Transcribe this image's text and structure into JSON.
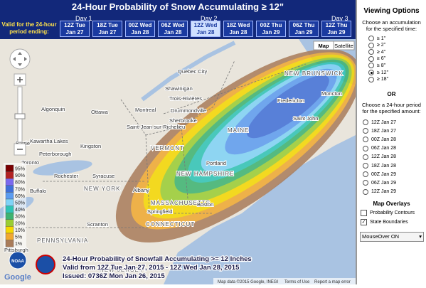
{
  "header": {
    "title": "24-Hour Probability of Snow Accumulating ≥ 12\"",
    "days": [
      "Day 1",
      "Day 2",
      "Day 3"
    ],
    "valid_label": "Valid for the 24-hour period ending:",
    "periods": [
      {
        "time": "12Z Tue",
        "date": "Jan 27",
        "selected": false
      },
      {
        "time": "18Z Tue",
        "date": "Jan 27",
        "selected": false
      },
      {
        "time": "00Z Wed",
        "date": "Jan 28",
        "selected": false
      },
      {
        "time": "06Z Wed",
        "date": "Jan 28",
        "selected": false
      },
      {
        "time": "12Z Wed",
        "date": "Jan 28",
        "selected": true
      },
      {
        "time": "18Z Wed",
        "date": "Jan 28",
        "selected": false
      },
      {
        "time": "00Z Thu",
        "date": "Jan 29",
        "selected": false
      },
      {
        "time": "06Z Thu",
        "date": "Jan 29",
        "selected": false
      },
      {
        "time": "12Z Thu",
        "date": "Jan 29",
        "selected": false
      }
    ]
  },
  "map": {
    "buttons": [
      "Map",
      "Satellite"
    ],
    "places": [
      "Quebec City",
      "Shawinigan",
      "Trois-Rivières",
      "Drummondville",
      "Montreal",
      "Sherbrooke",
      "Saint-Jean-sur-Richelieu",
      "Ottawa",
      "Algonquin",
      "Kingston",
      "Peterborough",
      "Kawartha Lakes",
      "Barrie",
      "Toronto",
      "Rochester",
      "Buffalo",
      "Syracuse",
      "Albany",
      "NEW YORK",
      "VERMONT",
      "NEW HAMPSHIRE",
      "MAINE",
      "MASSACHUSETTS",
      "CONNECTICUT",
      "NEW BRUNSWICK",
      "Fredericton",
      "Saint John",
      "Moncton",
      "Portland",
      "Boston",
      "Springfield",
      "Scranton",
      "PENNSYLVANIA",
      "Pittsburgh",
      "NEW JERSEY"
    ],
    "legend": [
      {
        "label": "95%",
        "color": "#7a0000"
      },
      {
        "label": "90%",
        "color": "#b22222"
      },
      {
        "label": "80%",
        "color": "#7b68ee"
      },
      {
        "label": "70%",
        "color": "#3f6fd8"
      },
      {
        "label": "60%",
        "color": "#5b9cf0"
      },
      {
        "label": "50%",
        "color": "#7fd3f7"
      },
      {
        "label": "40%",
        "color": "#2ec4b6"
      },
      {
        "label": "30%",
        "color": "#3cb371"
      },
      {
        "label": "20%",
        "color": "#9acd32"
      },
      {
        "label": "10%",
        "color": "#f5d800"
      },
      {
        "label": "5%",
        "color": "#f0a830"
      },
      {
        "label": "1%",
        "color": "#a97c5a"
      }
    ],
    "caption": [
      "24-Hour Probability of Snowfall Accumulating >= 12 Inches",
      "Valid from 12Z Tue Jan 27, 2015 - 12Z Wed Jan 28, 2015",
      "Issued: 0736Z Mon Jan 26, 2015"
    ],
    "logo": "Google",
    "noaa": "NOAA",
    "footer": [
      "Map data ©2015 Google, INEGI",
      "Terms of Use",
      "Report a map error"
    ]
  },
  "sidebar": {
    "title": "Viewing Options",
    "accumulation_prompt": "Choose an accumulation for the specified time:",
    "amounts": [
      {
        "label": "≥ 1\"",
        "checked": false
      },
      {
        "label": "≥ 2\"",
        "checked": false
      },
      {
        "label": "≥ 4\"",
        "checked": false
      },
      {
        "label": "≥ 6\"",
        "checked": false
      },
      {
        "label": "≥ 8\"",
        "checked": false
      },
      {
        "label": "≥ 12\"",
        "checked": true
      },
      {
        "label": "≥ 18\"",
        "checked": false
      }
    ],
    "or": "OR",
    "period_prompt": "Choose a 24-hour period for the specified amount:",
    "periods": [
      "12Z Jan 27",
      "18Z Jan 27",
      "00Z Jan 28",
      "06Z Jan 28",
      "12Z Jan 28",
      "18Z Jan 28",
      "00Z Jan 29",
      "06Z Jan 29",
      "12Z Jan 29"
    ],
    "overlays_title": "Map Overlays",
    "overlays": [
      {
        "label": "Probability Contours",
        "checked": false
      },
      {
        "label": "State Boundaries",
        "checked": true
      }
    ],
    "select": "MouseOver ON"
  }
}
